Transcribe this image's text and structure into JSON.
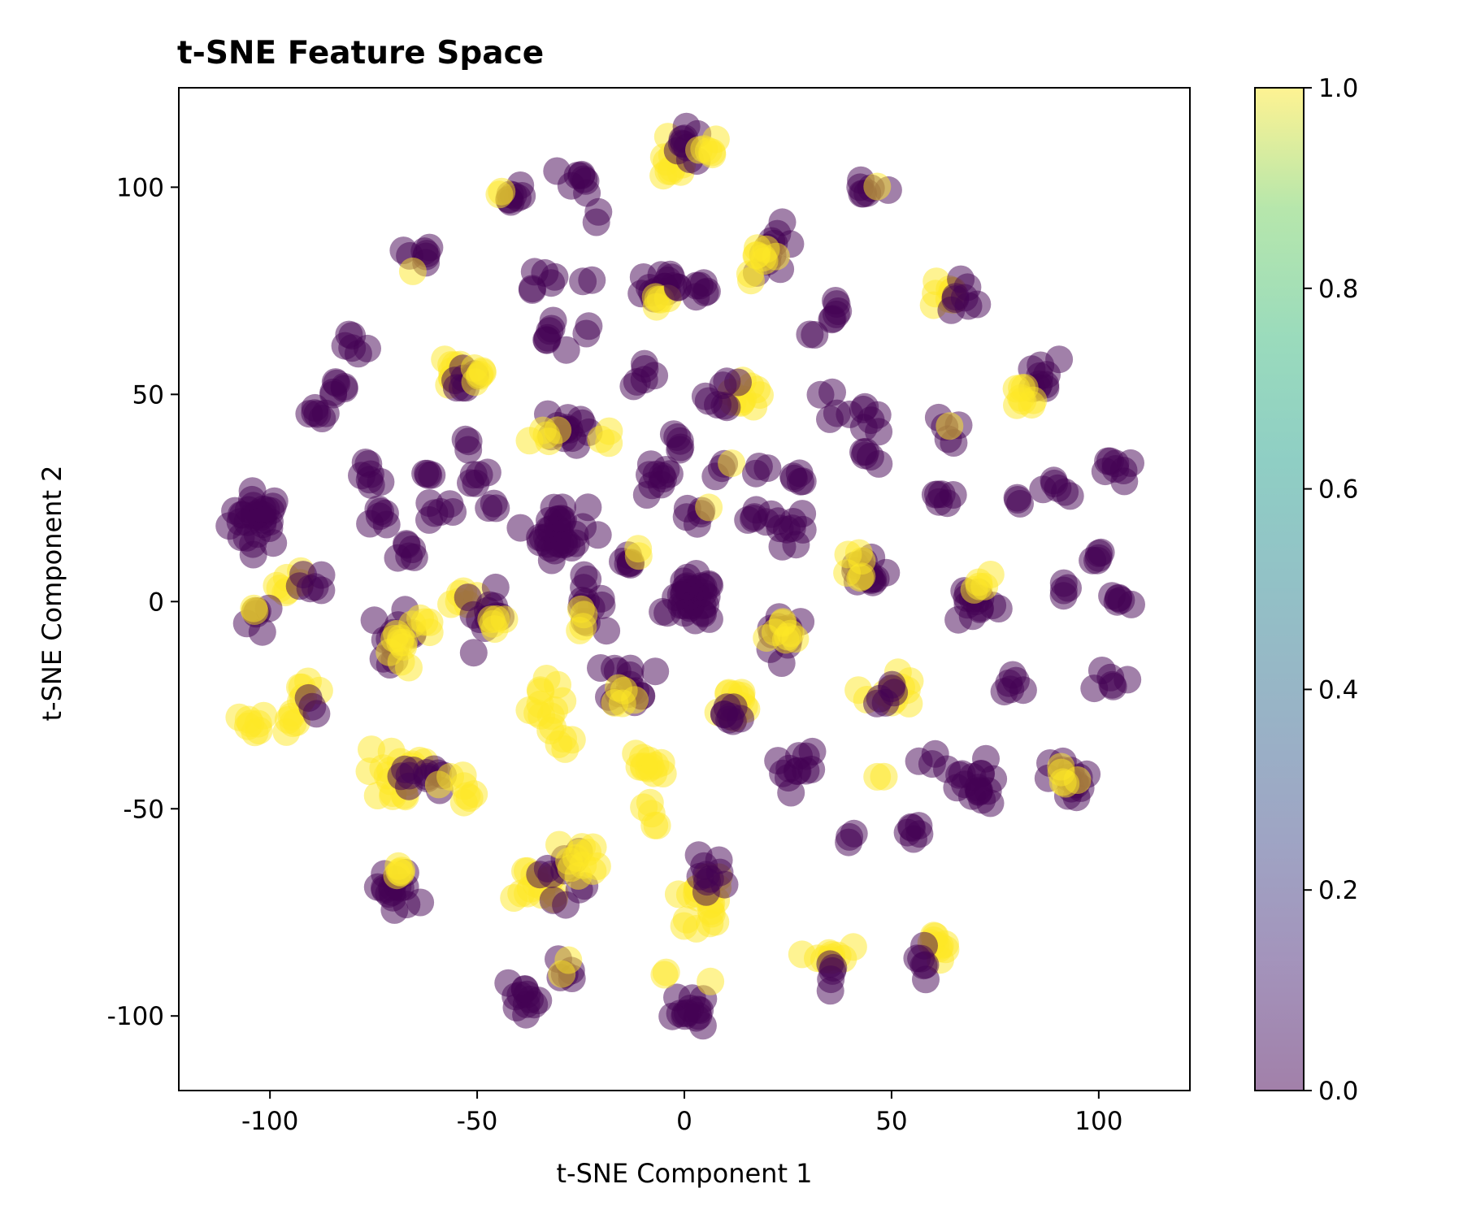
{
  "chart_data": {
    "type": "scatter",
    "title": "t-SNE Feature Space",
    "xlabel": "t-SNE Component 1",
    "ylabel": "t-SNE Component 2",
    "xlim": [
      -122,
      122
    ],
    "ylim": [
      -118,
      124
    ],
    "xticks": [
      -100,
      -50,
      0,
      50,
      100
    ],
    "yticks": [
      -100,
      -50,
      0,
      50,
      100
    ],
    "xtick_labels": [
      "-100",
      "-50",
      "0",
      "50",
      "100"
    ],
    "ytick_labels": [
      "-100",
      "-50",
      "0",
      "50",
      "100"
    ],
    "grid": false,
    "marker_alpha": 0.5,
    "colorbar": {
      "colormap": "viridis",
      "range": [
        0.0,
        1.0
      ],
      "ticks": [
        0.0,
        0.2,
        0.4,
        0.6,
        0.8,
        1.0
      ],
      "tick_labels": [
        "0.0",
        "0.2",
        "0.4",
        "0.6",
        "0.8",
        "1.0"
      ],
      "color_low": "#440154",
      "color_high": "#fde725"
    },
    "clusters": [
      {
        "x": -103,
        "y": 20,
        "spread": 6,
        "n": 30,
        "value": 0
      },
      {
        "x": -94,
        "y": 4,
        "spread": 4,
        "n": 7,
        "value": 1
      },
      {
        "x": -90,
        "y": 4,
        "spread": 3,
        "n": 6,
        "value": 0
      },
      {
        "x": -103,
        "y": -4,
        "spread": 3,
        "n": 6,
        "value": 0
      },
      {
        "x": -103,
        "y": -1,
        "spread": 2,
        "n": 2,
        "value": 1
      },
      {
        "x": -104,
        "y": -30,
        "spread": 3,
        "n": 8,
        "value": 1
      },
      {
        "x": -96,
        "y": -29,
        "spread": 3,
        "n": 6,
        "value": 1
      },
      {
        "x": -91,
        "y": -22,
        "spread": 3,
        "n": 6,
        "value": 1
      },
      {
        "x": -90,
        "y": -26,
        "spread": 2,
        "n": 3,
        "value": 0
      },
      {
        "x": -80,
        "y": 62,
        "spread": 3,
        "n": 6,
        "value": 0
      },
      {
        "x": -84,
        "y": 52,
        "spread": 3,
        "n": 6,
        "value": 0
      },
      {
        "x": -89,
        "y": 44,
        "spread": 3,
        "n": 6,
        "value": 0
      },
      {
        "x": -75,
        "y": 30,
        "spread": 3,
        "n": 7,
        "value": 0
      },
      {
        "x": -74,
        "y": 20,
        "spread": 3,
        "n": 6,
        "value": 0
      },
      {
        "x": -66,
        "y": 13,
        "spread": 3,
        "n": 6,
        "value": 0
      },
      {
        "x": -59,
        "y": 22,
        "spread": 3,
        "n": 6,
        "value": 0
      },
      {
        "x": -63,
        "y": 31,
        "spread": 3,
        "n": 4,
        "value": 0
      },
      {
        "x": -64,
        "y": 83,
        "spread": 3,
        "n": 7,
        "value": 0
      },
      {
        "x": -66,
        "y": 81,
        "spread": 2,
        "n": 1,
        "value": 1
      },
      {
        "x": -57,
        "y": 56,
        "spread": 4,
        "n": 10,
        "value": 1
      },
      {
        "x": -53,
        "y": 54,
        "spread": 4,
        "n": 8,
        "value": 0
      },
      {
        "x": -49,
        "y": 55,
        "spread": 3,
        "n": 6,
        "value": 1
      },
      {
        "x": -52,
        "y": 38,
        "spread": 2,
        "n": 3,
        "value": 0
      },
      {
        "x": -48,
        "y": 30,
        "spread": 3,
        "n": 5,
        "value": 0
      },
      {
        "x": -46,
        "y": 24,
        "spread": 2,
        "n": 3,
        "value": 0
      },
      {
        "x": -42,
        "y": 98,
        "spread": 3,
        "n": 8,
        "value": 0
      },
      {
        "x": -44,
        "y": 98,
        "spread": 2,
        "n": 2,
        "value": 1
      },
      {
        "x": -25,
        "y": 102,
        "spread": 3,
        "n": 8,
        "value": 0
      },
      {
        "x": -21,
        "y": 93,
        "spread": 2,
        "n": 2,
        "value": 0
      },
      {
        "x": -35,
        "y": 79,
        "spread": 3,
        "n": 6,
        "value": 0
      },
      {
        "x": -23,
        "y": 77,
        "spread": 2,
        "n": 2,
        "value": 0
      },
      {
        "x": -33,
        "y": 64,
        "spread": 3,
        "n": 7,
        "value": 0
      },
      {
        "x": -23,
        "y": 64,
        "spread": 2,
        "n": 2,
        "value": 0
      },
      {
        "x": -28,
        "y": 42,
        "spread": 5,
        "n": 14,
        "value": 0
      },
      {
        "x": -34,
        "y": 40,
        "spread": 3,
        "n": 5,
        "value": 1
      },
      {
        "x": -20,
        "y": 40,
        "spread": 2,
        "n": 3,
        "value": 1
      },
      {
        "x": -30,
        "y": 17,
        "spread": 6,
        "n": 32,
        "value": 0
      },
      {
        "x": -53,
        "y": 0,
        "spread": 3,
        "n": 6,
        "value": 1
      },
      {
        "x": -48,
        "y": -3,
        "spread": 5,
        "n": 12,
        "value": 0
      },
      {
        "x": -45,
        "y": -5,
        "spread": 3,
        "n": 5,
        "value": 1
      },
      {
        "x": -70,
        "y": -8,
        "spread": 5,
        "n": 12,
        "value": 0
      },
      {
        "x": -68,
        "y": -12,
        "spread": 4,
        "n": 9,
        "value": 1
      },
      {
        "x": -63,
        "y": -5,
        "spread": 3,
        "n": 5,
        "value": 1
      },
      {
        "x": -25,
        "y": 0,
        "spread": 5,
        "n": 12,
        "value": 0
      },
      {
        "x": -23,
        "y": -4,
        "spread": 3,
        "n": 4,
        "value": 1
      },
      {
        "x": -14,
        "y": 8,
        "spread": 3,
        "n": 6,
        "value": 0
      },
      {
        "x": -11,
        "y": 11,
        "spread": 2,
        "n": 2,
        "value": 1
      },
      {
        "x": -9,
        "y": 55,
        "spread": 3,
        "n": 6,
        "value": 0
      },
      {
        "x": -6,
        "y": 76,
        "spread": 5,
        "n": 14,
        "value": 0
      },
      {
        "x": -6,
        "y": 73,
        "spread": 3,
        "n": 5,
        "value": 1
      },
      {
        "x": 3,
        "y": 76,
        "spread": 4,
        "n": 8,
        "value": 0
      },
      {
        "x": -3,
        "y": 105,
        "spread": 4,
        "n": 10,
        "value": 1
      },
      {
        "x": 1,
        "y": 110,
        "spread": 4,
        "n": 10,
        "value": 0
      },
      {
        "x": 5,
        "y": 109,
        "spread": 3,
        "n": 6,
        "value": 1
      },
      {
        "x": -1,
        "y": 38,
        "spread": 3,
        "n": 5,
        "value": 0
      },
      {
        "x": -7,
        "y": 29,
        "spread": 4,
        "n": 10,
        "value": 0
      },
      {
        "x": 3,
        "y": 20,
        "spread": 3,
        "n": 5,
        "value": 0
      },
      {
        "x": 5,
        "y": 23,
        "spread": 2,
        "n": 1,
        "value": 1
      },
      {
        "x": 2,
        "y": 0,
        "spread": 5,
        "n": 36,
        "value": 0
      },
      {
        "x": 10,
        "y": 33,
        "spread": 2,
        "n": 3,
        "value": 0
      },
      {
        "x": 11,
        "y": 34,
        "spread": 2,
        "n": 1,
        "value": 1
      },
      {
        "x": 17,
        "y": 20,
        "spread": 3,
        "n": 5,
        "value": 0
      },
      {
        "x": 19,
        "y": 32,
        "spread": 2,
        "n": 3,
        "value": 0
      },
      {
        "x": 28,
        "y": 30,
        "spread": 3,
        "n": 5,
        "value": 0
      },
      {
        "x": 26,
        "y": 17,
        "spread": 4,
        "n": 10,
        "value": 0
      },
      {
        "x": 14,
        "y": 52,
        "spread": 5,
        "n": 10,
        "value": 1
      },
      {
        "x": 10,
        "y": 50,
        "spread": 4,
        "n": 8,
        "value": 0
      },
      {
        "x": 22,
        "y": 85,
        "spread": 5,
        "n": 12,
        "value": 0
      },
      {
        "x": 19,
        "y": 82,
        "spread": 4,
        "n": 9,
        "value": 1
      },
      {
        "x": 30,
        "y": 65,
        "spread": 2,
        "n": 2,
        "value": 0
      },
      {
        "x": 36,
        "y": 70,
        "spread": 3,
        "n": 6,
        "value": 0
      },
      {
        "x": 35,
        "y": 48,
        "spread": 3,
        "n": 4,
        "value": 0
      },
      {
        "x": 45,
        "y": 45,
        "spread": 4,
        "n": 8,
        "value": 0
      },
      {
        "x": 43,
        "y": 36,
        "spread": 3,
        "n": 4,
        "value": 0
      },
      {
        "x": 44,
        "y": 98,
        "spread": 3,
        "n": 7,
        "value": 0
      },
      {
        "x": 46,
        "y": 99,
        "spread": 2,
        "n": 1,
        "value": 1
      },
      {
        "x": 62,
        "y": 74,
        "spread": 4,
        "n": 8,
        "value": 1
      },
      {
        "x": 67,
        "y": 74,
        "spread": 4,
        "n": 8,
        "value": 0
      },
      {
        "x": 64,
        "y": 42,
        "spread": 3,
        "n": 5,
        "value": 0
      },
      {
        "x": 64,
        "y": 42,
        "spread": 1,
        "n": 1,
        "value": 1
      },
      {
        "x": 61,
        "y": 25,
        "spread": 3,
        "n": 6,
        "value": 0
      },
      {
        "x": 86,
        "y": 54,
        "spread": 4,
        "n": 10,
        "value": 0
      },
      {
        "x": 81,
        "y": 48,
        "spread": 4,
        "n": 8,
        "value": 1
      },
      {
        "x": 80,
        "y": 24,
        "spread": 2,
        "n": 3,
        "value": 0
      },
      {
        "x": 90,
        "y": 27,
        "spread": 3,
        "n": 6,
        "value": 0
      },
      {
        "x": 105,
        "y": 32,
        "spread": 3,
        "n": 8,
        "value": 0
      },
      {
        "x": 100,
        "y": 10,
        "spread": 3,
        "n": 5,
        "value": 0
      },
      {
        "x": 92,
        "y": 3,
        "spread": 3,
        "n": 4,
        "value": 0
      },
      {
        "x": 105,
        "y": 0,
        "spread": 3,
        "n": 6,
        "value": 0
      },
      {
        "x": 44,
        "y": 7,
        "spread": 5,
        "n": 14,
        "value": 0
      },
      {
        "x": 43,
        "y": 9,
        "spread": 4,
        "n": 6,
        "value": 1
      },
      {
        "x": 70,
        "y": 0,
        "spread": 5,
        "n": 14,
        "value": 0
      },
      {
        "x": 72,
        "y": 5,
        "spread": 3,
        "n": 5,
        "value": 1
      },
      {
        "x": 24,
        "y": -7,
        "spread": 5,
        "n": 14,
        "value": 0
      },
      {
        "x": 24,
        "y": -9,
        "spread": 4,
        "n": 8,
        "value": 1
      },
      {
        "x": 50,
        "y": -22,
        "spread": 5,
        "n": 12,
        "value": 1
      },
      {
        "x": 48,
        "y": -22,
        "spread": 4,
        "n": 6,
        "value": 0
      },
      {
        "x": 80,
        "y": -19,
        "spread": 3,
        "n": 6,
        "value": 0
      },
      {
        "x": 103,
        "y": -19,
        "spread": 3,
        "n": 6,
        "value": 0
      },
      {
        "x": -13,
        "y": -19,
        "spread": 5,
        "n": 16,
        "value": 0
      },
      {
        "x": -15,
        "y": -23,
        "spread": 3,
        "n": 5,
        "value": 1
      },
      {
        "x": 11,
        "y": -25,
        "spread": 5,
        "n": 12,
        "value": 1
      },
      {
        "x": 11,
        "y": -27,
        "spread": 4,
        "n": 8,
        "value": 0
      },
      {
        "x": -35,
        "y": -25,
        "spread": 5,
        "n": 12,
        "value": 1
      },
      {
        "x": -31,
        "y": -34,
        "spread": 3,
        "n": 5,
        "value": 1
      },
      {
        "x": -9,
        "y": -40,
        "spread": 4,
        "n": 12,
        "value": 1
      },
      {
        "x": -9,
        "y": -51,
        "spread": 3,
        "n": 5,
        "value": 1
      },
      {
        "x": -70,
        "y": -42,
        "spread": 6,
        "n": 18,
        "value": 1
      },
      {
        "x": -63,
        "y": -42,
        "spread": 5,
        "n": 12,
        "value": 0
      },
      {
        "x": -55,
        "y": -45,
        "spread": 4,
        "n": 8,
        "value": 1
      },
      {
        "x": 27,
        "y": -40,
        "spread": 5,
        "n": 12,
        "value": 0
      },
      {
        "x": 47,
        "y": -42,
        "spread": 2,
        "n": 2,
        "value": 1
      },
      {
        "x": 59,
        "y": -39,
        "spread": 2,
        "n": 3,
        "value": 0
      },
      {
        "x": 70,
        "y": -45,
        "spread": 6,
        "n": 18,
        "value": 0
      },
      {
        "x": 94,
        "y": -43,
        "spread": 5,
        "n": 14,
        "value": 0
      },
      {
        "x": 92,
        "y": -43,
        "spread": 3,
        "n": 5,
        "value": 1
      },
      {
        "x": 40,
        "y": -58,
        "spread": 2,
        "n": 3,
        "value": 0
      },
      {
        "x": 56,
        "y": -56,
        "spread": 3,
        "n": 6,
        "value": 0
      },
      {
        "x": -70,
        "y": -70,
        "spread": 5,
        "n": 16,
        "value": 0
      },
      {
        "x": -68,
        "y": -65,
        "spread": 3,
        "n": 5,
        "value": 1
      },
      {
        "x": -35,
        "y": -68,
        "spread": 5,
        "n": 14,
        "value": 1
      },
      {
        "x": -30,
        "y": -66,
        "spread": 5,
        "n": 12,
        "value": 0
      },
      {
        "x": -25,
        "y": -62,
        "spread": 5,
        "n": 12,
        "value": 1
      },
      {
        "x": 5,
        "y": -72,
        "spread": 6,
        "n": 20,
        "value": 1
      },
      {
        "x": 5,
        "y": -66,
        "spread": 4,
        "n": 10,
        "value": 0
      },
      {
        "x": 35,
        "y": -86,
        "spread": 4,
        "n": 10,
        "value": 1
      },
      {
        "x": 35,
        "y": -90,
        "spread": 3,
        "n": 5,
        "value": 0
      },
      {
        "x": 61,
        "y": -82,
        "spread": 4,
        "n": 10,
        "value": 1
      },
      {
        "x": 59,
        "y": -86,
        "spread": 3,
        "n": 6,
        "value": 0
      },
      {
        "x": -39,
        "y": -97,
        "spread": 4,
        "n": 12,
        "value": 0
      },
      {
        "x": -30,
        "y": -89,
        "spread": 3,
        "n": 5,
        "value": 0
      },
      {
        "x": -29,
        "y": -87,
        "spread": 2,
        "n": 2,
        "value": 1
      },
      {
        "x": 2,
        "y": -99,
        "spread": 4,
        "n": 14,
        "value": 0
      },
      {
        "x": -4,
        "y": -90,
        "spread": 2,
        "n": 2,
        "value": 1
      },
      {
        "x": 7,
        "y": -93,
        "spread": 2,
        "n": 1,
        "value": 1
      }
    ]
  }
}
